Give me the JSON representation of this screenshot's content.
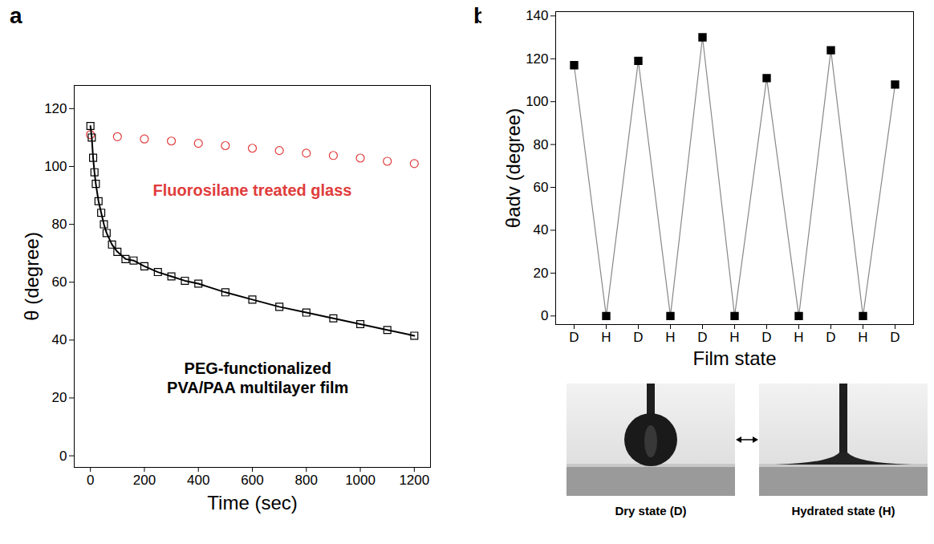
{
  "chart_data": [
    {
      "panel": "a",
      "type": "scatter",
      "x_label": "Time (sec)",
      "y_label": "θ (degree)",
      "xlim": [
        -60,
        1260
      ],
      "xticks": [
        0,
        200,
        400,
        600,
        800,
        1000,
        1200
      ],
      "ylim": [
        -4,
        128
      ],
      "yticks": [
        0,
        20,
        40,
        60,
        80,
        100,
        120
      ],
      "series": [
        {
          "name": "Fluorosilane treated glass",
          "color": "#e03c3c",
          "marker": "circle",
          "line_style": "none",
          "label_at": [
            600,
            92
          ],
          "x": [
            0,
            100,
            200,
            300,
            400,
            500,
            600,
            700,
            800,
            900,
            1000,
            1100,
            1200
          ],
          "values": [
            111,
            110.3,
            109.5,
            108.8,
            108,
            107.2,
            106.3,
            105.5,
            104.6,
            103.8,
            102.9,
            101.8,
            101
          ]
        },
        {
          "name": "PEG-functionalized\nPVA/PAA multilayer film",
          "color": "#000000",
          "marker": "square",
          "line_style": "solid",
          "label_at": [
            620,
            27
          ],
          "x": [
            0,
            5,
            10,
            15,
            20,
            30,
            40,
            50,
            60,
            80,
            100,
            130,
            160,
            200,
            250,
            300,
            350,
            400,
            500,
            600,
            700,
            800,
            900,
            1000,
            1100,
            1200
          ],
          "values": [
            114,
            110,
            103,
            98,
            94,
            88,
            84,
            80,
            77,
            73,
            70.5,
            68,
            67.5,
            65.5,
            63.5,
            62,
            60.5,
            59.5,
            56.5,
            54,
            51.5,
            49.5,
            47.5,
            45.5,
            43.5,
            41.5
          ]
        }
      ]
    },
    {
      "panel": "b",
      "type": "line",
      "x_label": "Film state",
      "y_label": "θadv (degree)",
      "categories": [
        "D",
        "H",
        "D",
        "H",
        "D",
        "H",
        "D",
        "H",
        "D",
        "H",
        "D"
      ],
      "values": [
        117,
        0,
        119,
        0,
        130,
        0,
        111,
        0,
        124,
        0,
        108
      ],
      "color": "#000000",
      "line_color": "#888888",
      "marker": "square",
      "ylim": [
        -4,
        142
      ],
      "yticks": [
        0,
        20,
        40,
        60,
        80,
        100,
        120,
        140
      ],
      "image_captions": [
        "Dry state (D)",
        "Hydrated state (H)"
      ]
    }
  ]
}
